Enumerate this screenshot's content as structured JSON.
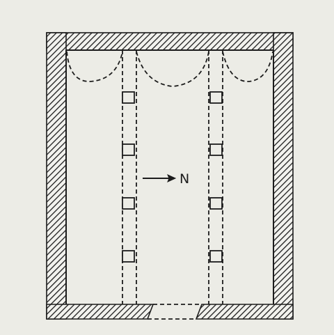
{
  "diagram": {
    "north_label": "N",
    "colors": {
      "background": "#ECECE6",
      "ink": "#1C1C1C"
    },
    "pillars_per_row": 4,
    "pillar_rows": 2,
    "arches_across_top": 3
  }
}
